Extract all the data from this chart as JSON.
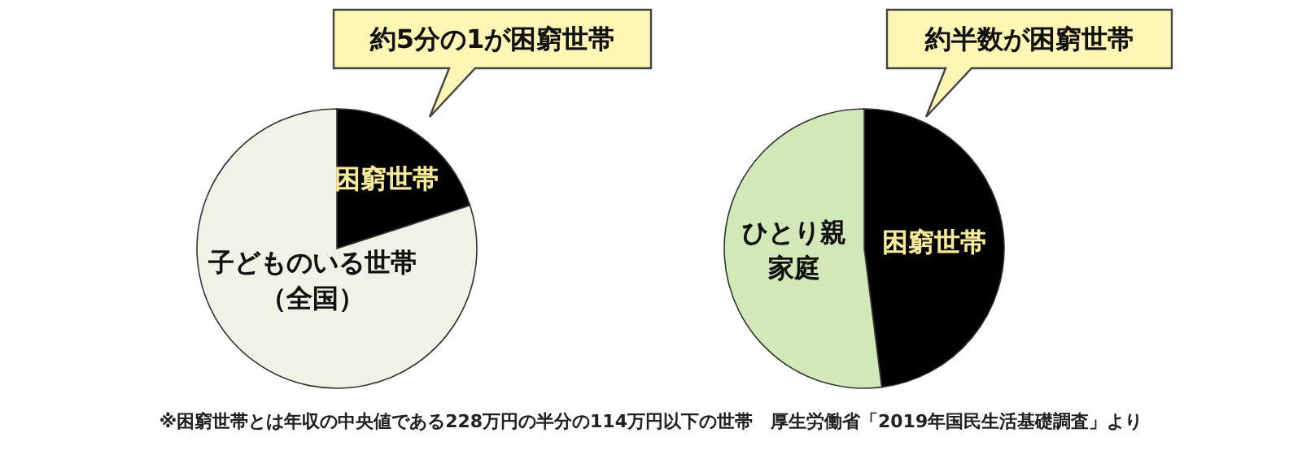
{
  "chart_data": [
    {
      "type": "pie",
      "categories": [
        "困窮世帯",
        "子どものいる世帯（全国）"
      ],
      "values": [
        20,
        80
      ],
      "colors": [
        "#000000",
        "#eef3e6"
      ],
      "annotations": [
        "約5分の1が困窮世帯",
        "※困窮世帯とは年収の中央値である228万円の半分の114万円以下の世帯　厚生労働省「2019年国民生活基礎調査」より"
      ]
    },
    {
      "type": "pie",
      "categories": [
        "困窮世帯",
        "ひとり親家庭"
      ],
      "values": [
        48,
        52
      ],
      "colors": [
        "#000000",
        "#d3e8b8"
      ],
      "annotations": [
        "約半数が困窮世帯"
      ]
    }
  ]
}
